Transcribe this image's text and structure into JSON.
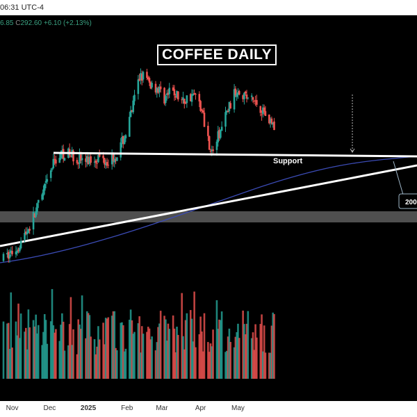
{
  "header": {
    "time_text": "06:31 UTC-4"
  },
  "ohlc": {
    "partial_value": "6.85",
    "close_label": "C",
    "close_value": "292.60",
    "change": "+6.10 (+2.13%)"
  },
  "chart_data": {
    "type": "candlestick",
    "title": "COFFEE DAILY",
    "x_ticks": [
      {
        "label": "Nov",
        "x": "2024-11-01"
      },
      {
        "label": "Dec",
        "x": "2024-12-01"
      },
      {
        "label": "2025",
        "x": "2025-01-01"
      },
      {
        "label": "Feb",
        "x": "2025-02-01"
      },
      {
        "label": "Mar",
        "x": "2025-03-01"
      },
      {
        "label": "Apr",
        "x": "2025-04-01"
      },
      {
        "label": "May",
        "x": "2025-05-01"
      }
    ],
    "annotations": [
      {
        "type": "horizontal_line",
        "label": "Support"
      },
      {
        "type": "trendline"
      },
      {
        "type": "moving_average",
        "label": "200"
      },
      {
        "type": "shaded_zone"
      }
    ],
    "price_path": [
      [
        "2024-10-25",
        247
      ],
      [
        "2024-11-05",
        255
      ],
      [
        "2024-11-15",
        270
      ],
      [
        "2024-11-25",
        290
      ],
      [
        "2024-12-05",
        315
      ],
      [
        "2024-12-12",
        320
      ],
      [
        "2024-12-20",
        318
      ],
      [
        "2024-12-30",
        314
      ],
      [
        "2025-01-08",
        317
      ],
      [
        "2025-01-17",
        315
      ],
      [
        "2025-01-25",
        320
      ],
      [
        "2025-02-02",
        338
      ],
      [
        "2025-02-08",
        360
      ],
      [
        "2025-02-12",
        375
      ],
      [
        "2025-02-18",
        368
      ],
      [
        "2025-02-25",
        365
      ],
      [
        "2025-03-03",
        358
      ],
      [
        "2025-03-10",
        362
      ],
      [
        "2025-03-18",
        355
      ],
      [
        "2025-03-25",
        360
      ],
      [
        "2025-03-31",
        356
      ],
      [
        "2025-04-07",
        330
      ],
      [
        "2025-04-10",
        320
      ],
      [
        "2025-04-17",
        335
      ],
      [
        "2025-04-24",
        352
      ],
      [
        "2025-05-01",
        365
      ],
      [
        "2025-05-08",
        358
      ],
      [
        "2025-05-15",
        355
      ],
      [
        "2025-05-22",
        348
      ],
      [
        "2025-05-30",
        338
      ]
    ],
    "colors": {
      "up": "#26a69a",
      "down": "#ef5350",
      "ma": "#3b4bb5",
      "lines": "#ffffff",
      "zone": "#6a6a6a"
    }
  }
}
